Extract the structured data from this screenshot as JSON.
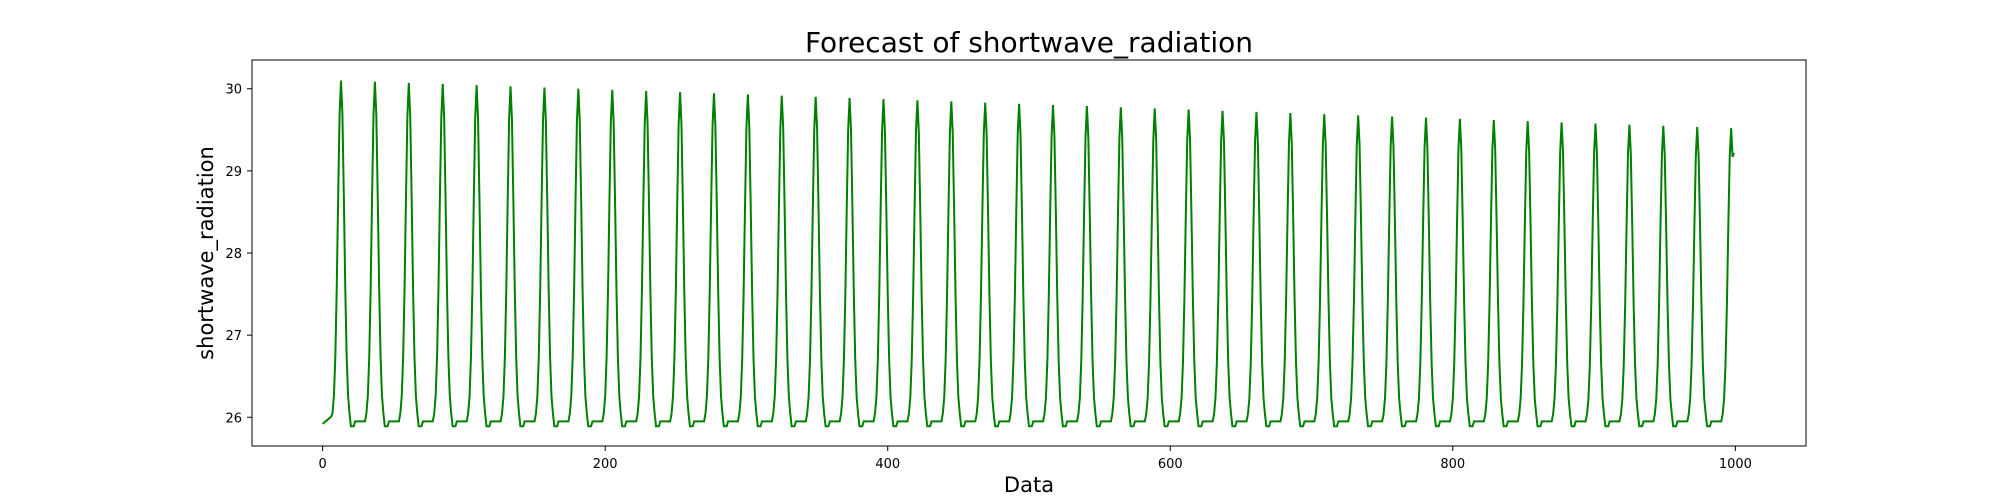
{
  "chart_data": {
    "type": "line",
    "title": "Forecast of shortwave_radiation",
    "xlabel": "Data",
    "ylabel": "shortwave_radiation",
    "xlim": [
      -50,
      1050
    ],
    "ylim": [
      25.65,
      30.35
    ],
    "xticks": [
      0,
      200,
      400,
      600,
      800,
      1000
    ],
    "yticks": [
      26,
      27,
      28,
      29,
      30
    ],
    "grid": false,
    "legend": "none",
    "series": [
      {
        "color": "#008000",
        "n_points": 1000,
        "baseline": 25.95,
        "first_peak_x": 13,
        "period": 24,
        "peak_start": 30.1,
        "peak_end": 29.52,
        "end_value": 29.22
      }
    ]
  }
}
